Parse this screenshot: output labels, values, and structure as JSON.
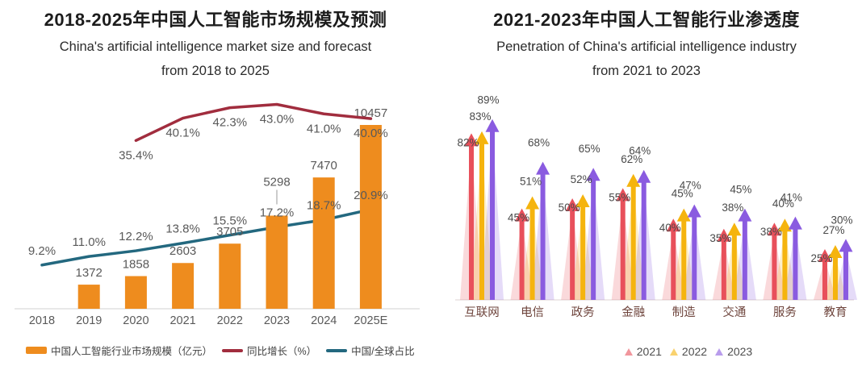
{
  "left": {
    "title_zh": "2018-2025年中国人工智能市场规模及预测",
    "subtitle_en": "China's artificial intelligence market size and forecast",
    "subtitle_range": "from 2018 to 2025",
    "legend": [
      {
        "label": "中国人工智能行业市场规模（亿元）",
        "swatch": "bar",
        "color": "#EE8C1E"
      },
      {
        "label": "同比增长（%）",
        "swatch": "line",
        "color": "#A12D3E"
      },
      {
        "label": "中国/全球占比",
        "swatch": "line",
        "color": "#23687F"
      }
    ]
  },
  "right": {
    "title_zh": "2021-2023年中国人工智能行业渗透度",
    "subtitle_en": "Penetration of China's artificial intelligence industry",
    "subtitle_range": "from 2021 to 2023",
    "legend": [
      {
        "label": "2021",
        "color": "#E8505B"
      },
      {
        "label": "2022",
        "color": "#F5B40E"
      },
      {
        "label": "2023",
        "color": "#8A5BE0"
      }
    ]
  },
  "colors": {
    "bar_orange": "#EE8C1E",
    "growth_red": "#A12D3E",
    "share_teal": "#23687F",
    "axis_gray": "#d9d9d9",
    "value_label_gray": "#595959",
    "right_category_brown": "#6e443c"
  },
  "chart_data": [
    {
      "type": "bar",
      "variant": "combo-bar-line",
      "title": "2018-2025年中国人工智能市场规模及预测",
      "categories": [
        "2018",
        "2019",
        "2020",
        "2021",
        "2022",
        "2023",
        "2024",
        "2025E"
      ],
      "bar_series": {
        "name": "中国人工智能行业市场规模（亿元）",
        "color": "#EE8C1E",
        "values": [
          null,
          1372,
          1858,
          2603,
          3705,
          5298,
          7470,
          10457
        ]
      },
      "line_series": [
        {
          "name": "同比增长（%）",
          "color": "#A12D3E",
          "label_position": "below",
          "values": [
            null,
            null,
            35.4,
            40.1,
            42.3,
            43.0,
            41.0,
            40.0
          ]
        },
        {
          "name": "中国/全球占比",
          "color": "#23687F",
          "label_position": "above",
          "values": [
            9.2,
            11.0,
            12.2,
            13.8,
            15.5,
            17.2,
            18.7,
            20.9
          ]
        }
      ],
      "ylim_bars": [
        0,
        10457
      ],
      "ylim_percent": [
        0,
        48
      ],
      "grid": false,
      "legend_position": "bottom-left"
    },
    {
      "type": "bar",
      "variant": "arrow-triangle",
      "title": "2021-2023年中国人工智能行业渗透度",
      "unit": "%",
      "categories": [
        "互联网",
        "电信",
        "政务",
        "金融",
        "制造",
        "交通",
        "服务",
        "教育"
      ],
      "series": [
        {
          "name": "2021",
          "color": "#E8505B",
          "values": [
            82,
            45,
            50,
            55,
            40,
            35,
            38,
            25
          ]
        },
        {
          "name": "2022",
          "color": "#F5B40E",
          "values": [
            83,
            51,
            52,
            62,
            45,
            38,
            40,
            27
          ]
        },
        {
          "name": "2023",
          "color": "#8A5BE0",
          "values": [
            89,
            68,
            65,
            64,
            47,
            45,
            41,
            30
          ]
        }
      ],
      "ylim": [
        0,
        100
      ],
      "grid": false,
      "legend_position": "bottom-center"
    }
  ]
}
